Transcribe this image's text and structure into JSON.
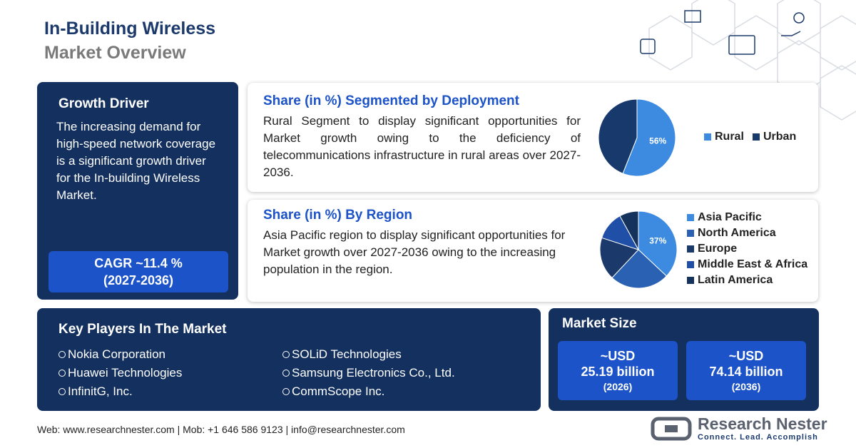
{
  "header": {
    "title": "In-Building Wireless",
    "subtitle": "Market Overview"
  },
  "growth_driver": {
    "title": "Growth Driver",
    "text": "The increasing demand for high-speed network coverage is a significant growth driver for the In-building Wireless Market."
  },
  "cagr": {
    "label": "CAGR ~11.4 %",
    "period": "(2027-2036)"
  },
  "deployment": {
    "title": "Share (in %) Segmented by Deployment",
    "text": "Rural Segment to display significant opportunities for Market growth owing to the deficiency of telecommunications infrastructure in rural areas over 2027-2036.",
    "chart": {
      "type": "pie",
      "categories": [
        "Rural",
        "Urban"
      ],
      "values": [
        56,
        44
      ],
      "value_labels": [
        "56%",
        null
      ],
      "colors": [
        "#3d8be0",
        "#17396b"
      ]
    }
  },
  "region": {
    "title": "Share (in %) By Region",
    "text": "Asia Pacific region to display significant opportunities for Market growth over 2027-2036 owing to the increasing population in the region.",
    "chart": {
      "type": "pie",
      "categories": [
        "Asia Pacific",
        "North America",
        "Europe",
        "Middle East & Africa",
        "Latin America"
      ],
      "values": [
        37,
        25,
        18,
        12,
        8
      ],
      "value_labels": [
        "37%",
        null,
        null,
        null,
        null
      ],
      "colors": [
        "#3d8be0",
        "#2a61b3",
        "#1b3a6b",
        "#1f4fa6",
        "#14325c"
      ]
    }
  },
  "key_players": {
    "title": "Key Players In The Market",
    "items": [
      "Nokia Corporation",
      "Huawei Technologies",
      "InfinitG, Inc.",
      "SOLiD Technologies",
      "Samsung Electronics Co., Ltd.",
      "CommScope Inc."
    ]
  },
  "market_size": {
    "title": "Market Size",
    "items": [
      {
        "currency": "~USD",
        "value": "25.19 billion",
        "year": "(2026)"
      },
      {
        "currency": "~USD",
        "value": "74.14 billion",
        "year": "(2036)"
      }
    ]
  },
  "footer": {
    "contact": "Web: www.researchnester.com | Mob: +1 646 586 9123 | info@researchnester.com",
    "logo_name": "Research Nester",
    "logo_tagline": "Connect. Lead. Accomplish"
  }
}
